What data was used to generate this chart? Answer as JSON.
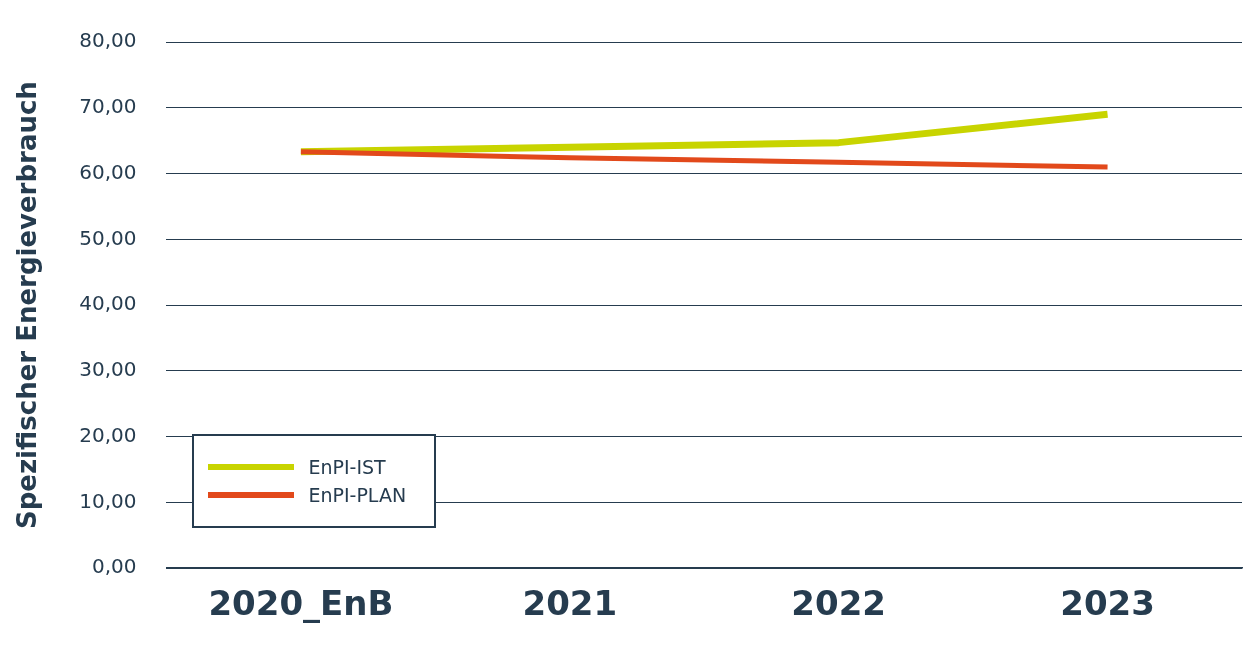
{
  "chart_data": {
    "type": "line",
    "ylabel": "Spezifischer Energieverbrauch",
    "categories": [
      "2020_EnB",
      "2021",
      "2022",
      "2023"
    ],
    "series": [
      {
        "name": "EnPI-IST",
        "color": "#c8d400",
        "values": [
          63.3,
          64.0,
          64.7,
          69.0
        ]
      },
      {
        "name": "EnPI-PLAN",
        "color": "#e2491b",
        "values": [
          63.3,
          62.4,
          61.7,
          61.0
        ]
      }
    ],
    "ylim": [
      0,
      80
    ],
    "yticks": [
      {
        "value": 0,
        "label": "0,00"
      },
      {
        "value": 10,
        "label": "10,00"
      },
      {
        "value": 20,
        "label": "20,00"
      },
      {
        "value": 30,
        "label": "30,00"
      },
      {
        "value": 40,
        "label": "40,00"
      },
      {
        "value": 50,
        "label": "50,00"
      },
      {
        "value": 60,
        "label": "60,00"
      },
      {
        "value": 70,
        "label": "70,00"
      },
      {
        "value": 80,
        "label": "80,00"
      }
    ],
    "grid": "y",
    "legend": "bottom left",
    "marker": "none",
    "line_style": "solid"
  }
}
